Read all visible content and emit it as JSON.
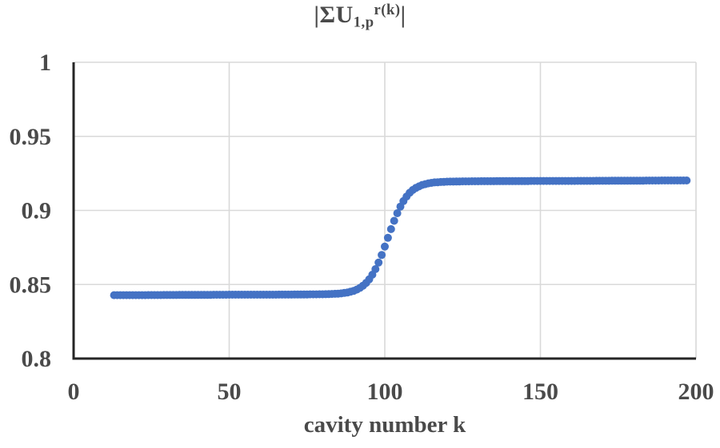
{
  "title": {
    "prefix": "|ΣU",
    "subscript": "1,p",
    "superscript": "r(k)",
    "suffix": "|"
  },
  "x_axis": {
    "label": "cavity number k",
    "tick_labels": [
      "0",
      "50",
      "100",
      "150",
      "200"
    ],
    "tick_values": [
      0,
      50,
      100,
      150,
      200
    ]
  },
  "y_axis": {
    "label": "",
    "tick_labels": [
      "1",
      "0.95",
      "0.9",
      "0.85",
      "0.8"
    ],
    "tick_values": [
      1,
      0.95,
      0.9,
      0.85,
      0.8
    ]
  },
  "colors": {
    "dot": "#4472C4",
    "grid": "#D9D9D9",
    "axis": "#262626",
    "text": "#4A4A4A",
    "background": "#FFFFFF"
  },
  "chart_data": {
    "type": "scatter",
    "title": "|ΣU1,p^r(k)| vs cavity number k",
    "xlabel": "cavity number k",
    "ylabel": "",
    "xlim": [
      0,
      200
    ],
    "ylim": [
      0.8,
      1.0
    ],
    "grid": true,
    "legend": false,
    "marker": "circle",
    "marker_radius_px": 5,
    "x_start": 13,
    "x_end": 197,
    "x_step": 1,
    "shape_note": "flat plateau ~0.843 for k<85, sigmoid step centered near k=101, upper plateau rising slowly to ~0.920 at k=197; one dot per integer k, interpolated between anchor points",
    "anchor_points": [
      [
        13,
        0.8428
      ],
      [
        20,
        0.8428
      ],
      [
        30,
        0.8429
      ],
      [
        40,
        0.843
      ],
      [
        50,
        0.8431
      ],
      [
        60,
        0.8431
      ],
      [
        70,
        0.8432
      ],
      [
        75,
        0.8433
      ],
      [
        80,
        0.8434
      ],
      [
        84,
        0.8437
      ],
      [
        86,
        0.844
      ],
      [
        88,
        0.8446
      ],
      [
        90,
        0.8457
      ],
      [
        91,
        0.8466
      ],
      [
        92,
        0.8477
      ],
      [
        93,
        0.8492
      ],
      [
        94,
        0.8511
      ],
      [
        95,
        0.8535
      ],
      [
        96,
        0.8566
      ],
      [
        97,
        0.8604
      ],
      [
        98,
        0.8648
      ],
      [
        99,
        0.8699
      ],
      [
        100,
        0.8756
      ],
      [
        101,
        0.8815
      ],
      [
        102,
        0.8874
      ],
      [
        103,
        0.893
      ],
      [
        104,
        0.8981
      ],
      [
        105,
        0.9026
      ],
      [
        106,
        0.9063
      ],
      [
        107,
        0.9094
      ],
      [
        108,
        0.9119
      ],
      [
        109,
        0.9138
      ],
      [
        110,
        0.9152
      ],
      [
        112,
        0.9172
      ],
      [
        114,
        0.9183
      ],
      [
        116,
        0.9189
      ],
      [
        118,
        0.9192
      ],
      [
        120,
        0.9194
      ],
      [
        125,
        0.9196
      ],
      [
        130,
        0.9197
      ],
      [
        140,
        0.9198
      ],
      [
        150,
        0.9199
      ],
      [
        160,
        0.9199
      ],
      [
        170,
        0.92
      ],
      [
        180,
        0.9201
      ],
      [
        190,
        0.9202
      ],
      [
        197,
        0.9202
      ]
    ]
  }
}
